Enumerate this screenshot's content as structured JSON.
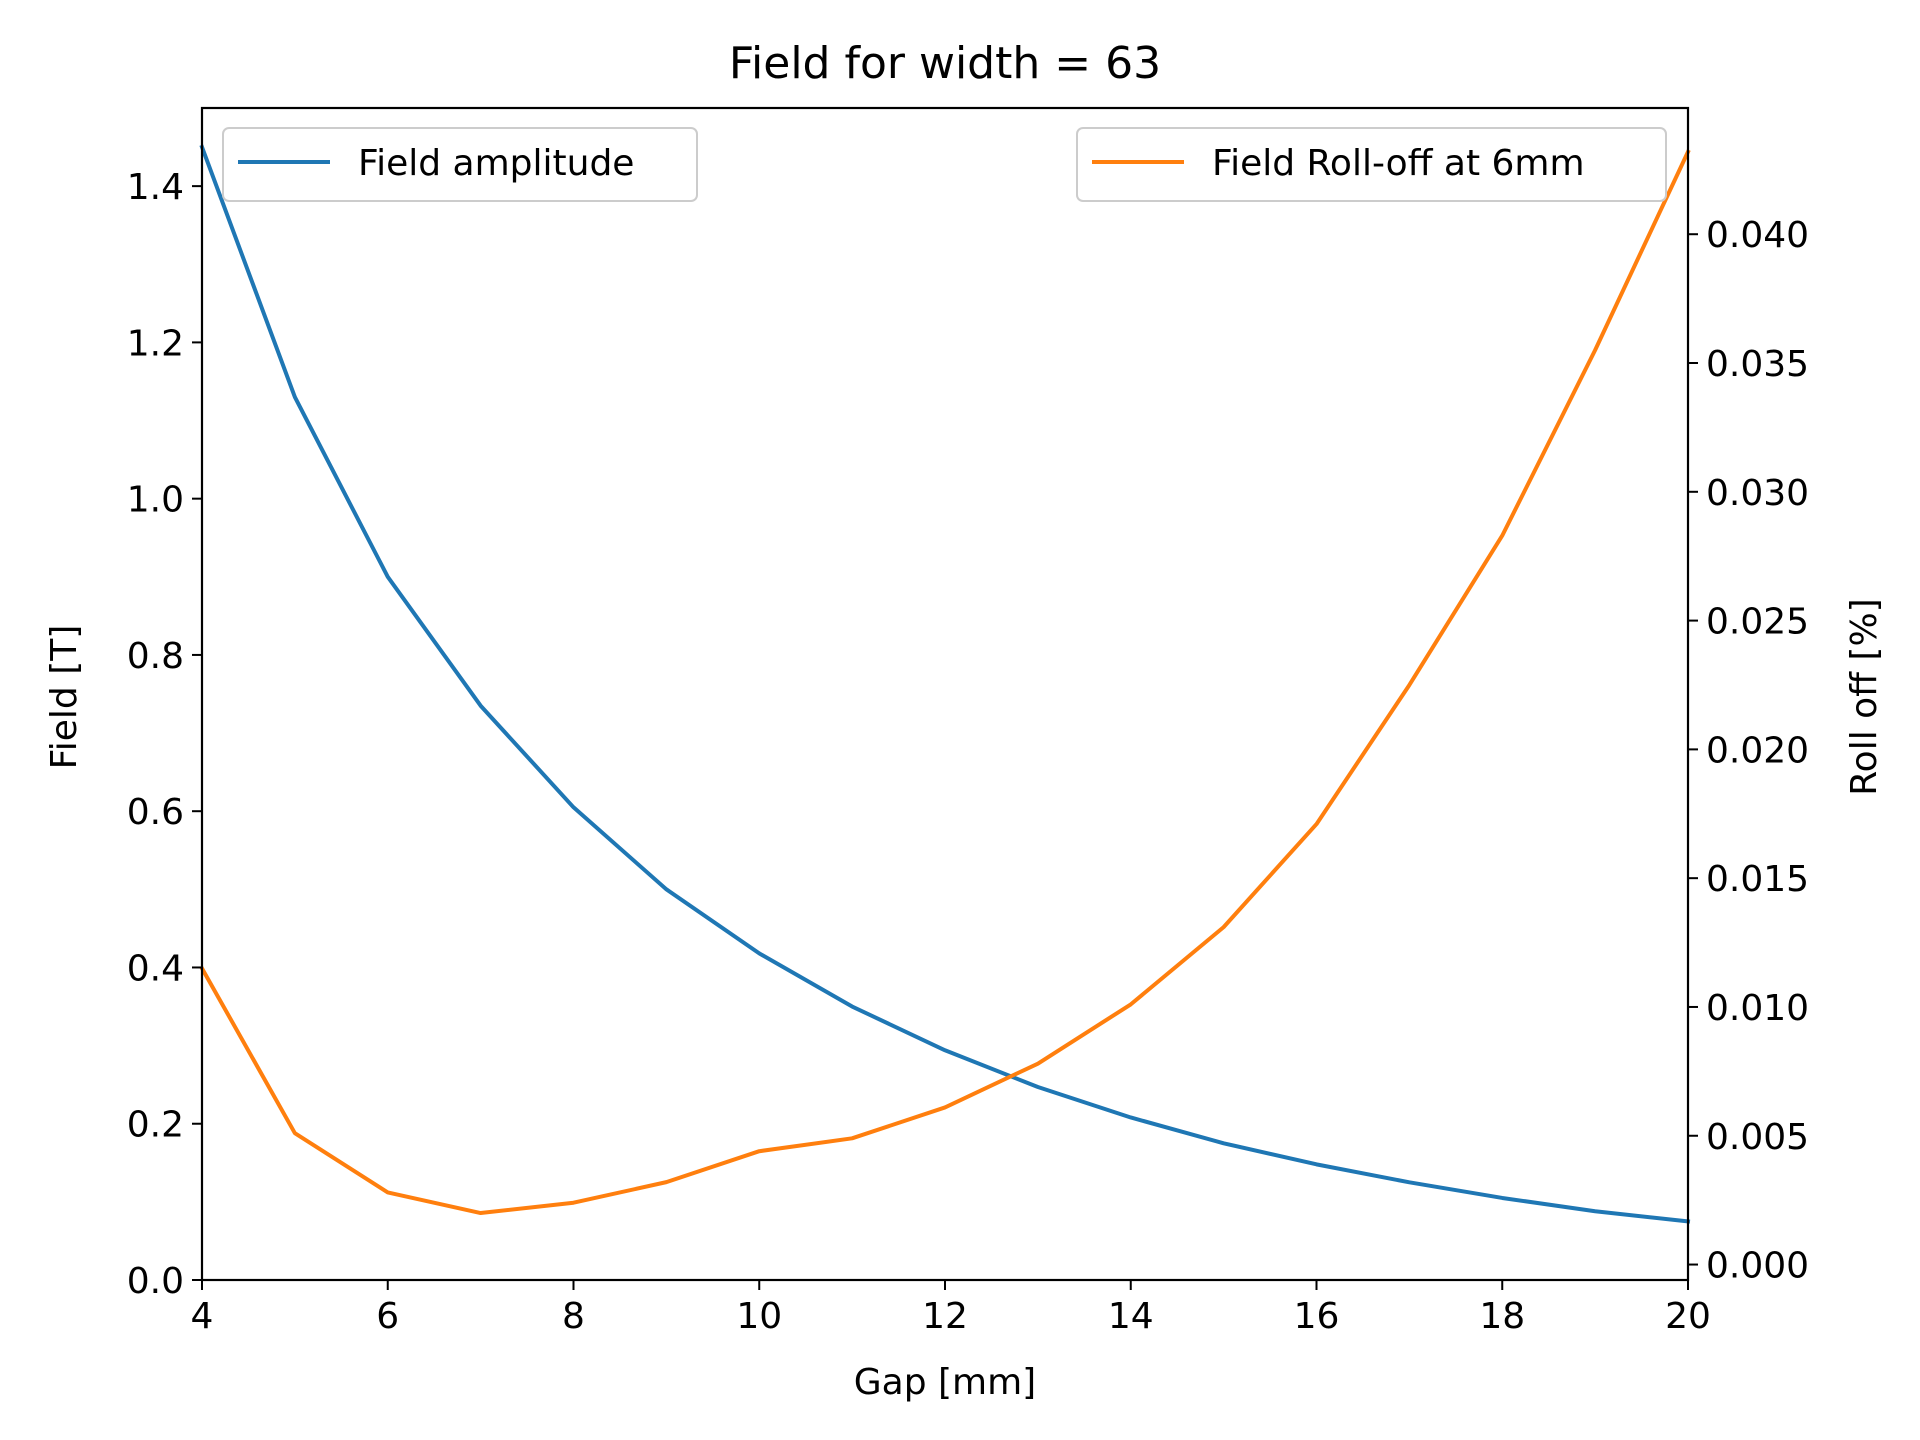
{
  "chart_data": {
    "type": "line",
    "title": "Field for width = 63",
    "xlabel": "Gap [mm]",
    "ylabel_left": "Field [T]",
    "ylabel_right": "Roll off [%]",
    "xlim": [
      4,
      20
    ],
    "ylim_left": [
      0.0,
      1.5
    ],
    "ylim_right": [
      -0.0006,
      0.0449
    ],
    "x_ticks": [
      "4",
      "6",
      "8",
      "10",
      "12",
      "14",
      "16",
      "18",
      "20"
    ],
    "y_left_ticks": [
      "0.0",
      "0.2",
      "0.4",
      "0.6",
      "0.8",
      "1.0",
      "1.2",
      "1.4"
    ],
    "y_right_ticks": [
      "0.000",
      "0.005",
      "0.010",
      "0.015",
      "0.020",
      "0.025",
      "0.030",
      "0.035",
      "0.040"
    ],
    "grid": false,
    "x": [
      4,
      5,
      6,
      7,
      8,
      9,
      10,
      11,
      12,
      13,
      14,
      15,
      16,
      17,
      18,
      19,
      20
    ],
    "series": [
      {
        "name": "Field amplitude",
        "axis": "left",
        "color": "#1f77b4",
        "legend_position": "upper-left",
        "values": [
          1.45,
          1.13,
          0.9,
          0.735,
          0.605,
          0.5,
          0.418,
          0.35,
          0.294,
          0.247,
          0.208,
          0.175,
          0.148,
          0.125,
          0.105,
          0.088,
          0.075
        ]
      },
      {
        "name": "Field Roll-off at 6mm",
        "axis": "right",
        "color": "#ff7f0e",
        "legend_position": "upper-right",
        "values": [
          0.0115,
          0.0051,
          0.0028,
          0.002,
          0.0024,
          0.0032,
          0.0044,
          0.0049,
          0.0061,
          0.0078,
          0.0101,
          0.0131,
          0.0171,
          0.0225,
          0.0283,
          0.0355,
          0.0432
        ]
      }
    ]
  }
}
